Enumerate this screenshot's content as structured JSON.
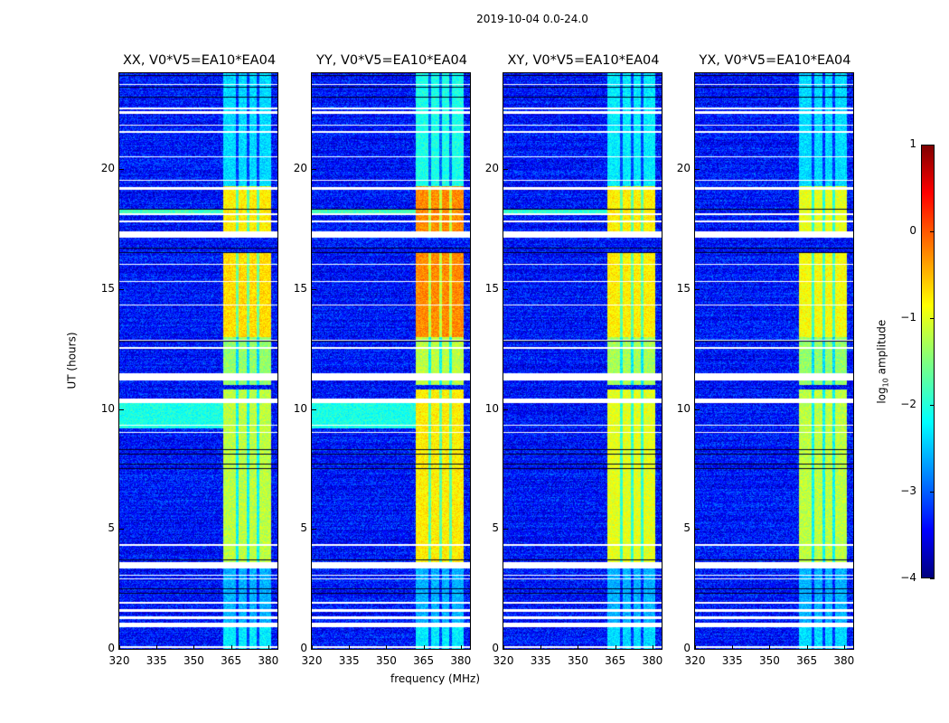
{
  "chart_data": {
    "type": "heatmap",
    "title": "2019-10-04 0.0-24.0",
    "xlabel": "frequency (MHz)",
    "ylabel": "UT (hours)",
    "xlim": [
      320,
      383.7
    ],
    "ylim": [
      0,
      24
    ],
    "xticks": [
      320,
      335,
      350,
      365,
      380
    ],
    "yticks": [
      0,
      5,
      10,
      15,
      20
    ],
    "colorbar": {
      "label": "log10 amplitude",
      "label_main": "log",
      "label_sub": "10",
      "label_rest": " amplitude",
      "range": [
        -4,
        1
      ],
      "ticks": [
        1,
        0,
        -1,
        -2,
        -3,
        -4
      ],
      "tick_labels": [
        "1",
        "0",
        "−1",
        "−2",
        "−3",
        "−4"
      ],
      "colormap": "jet"
    },
    "background_level": -3.3,
    "band_mhz": [
      362,
      381
    ],
    "band_gaps_mhz": [
      367.5,
      372,
      376
    ],
    "flagged_rows_ut": [
      [
        0.05,
        0.12
      ],
      [
        0.9,
        1.1
      ],
      [
        1.25,
        1.35
      ],
      [
        1.55,
        1.65
      ],
      [
        1.9,
        1.95
      ],
      [
        2.9,
        2.95
      ],
      [
        3.05,
        3.1
      ],
      [
        3.35,
        3.6
      ],
      [
        4.3,
        4.38
      ],
      [
        9.0,
        9.06
      ],
      [
        9.3,
        9.35
      ],
      [
        10.25,
        10.45
      ],
      [
        11.2,
        11.5
      ],
      [
        12.5,
        12.58
      ],
      [
        12.85,
        12.9
      ],
      [
        14.3,
        14.35
      ],
      [
        15.3,
        15.35
      ],
      [
        16.0,
        16.05
      ],
      [
        17.15,
        17.4
      ],
      [
        17.8,
        17.85
      ],
      [
        18.1,
        18.15
      ],
      [
        19.15,
        19.25
      ],
      [
        19.5,
        19.55
      ],
      [
        20.5,
        20.55
      ],
      [
        21.5,
        21.6
      ],
      [
        21.8,
        21.85
      ],
      [
        22.3,
        22.4
      ],
      [
        22.5,
        22.55
      ],
      [
        23.5,
        23.55
      ]
    ],
    "dark_rows_ut": [
      [
        2.3,
        2.33
      ],
      [
        2.5,
        2.53
      ],
      [
        3.7,
        3.73
      ],
      [
        5.3,
        5.32
      ],
      [
        7.5,
        7.53
      ],
      [
        7.7,
        7.72
      ],
      [
        7.9,
        7.93
      ],
      [
        8.1,
        8.12
      ],
      [
        8.3,
        8.32
      ],
      [
        12.8,
        12.83
      ],
      [
        16.5,
        16.53
      ],
      [
        16.7,
        16.72
      ],
      [
        18.3,
        18.35
      ],
      [
        23.0,
        23.03
      ],
      [
        23.4,
        23.43
      ],
      [
        23.9,
        23.93
      ]
    ],
    "panels": [
      {
        "title": "XX, V0*V5=EA10*EA04",
        "band_levels": [
          [
            0,
            1,
            -2.2
          ],
          [
            1,
            3.5,
            -2.5
          ],
          [
            3.5,
            10.8,
            -1.2
          ],
          [
            11,
            13,
            -1.4
          ],
          [
            13,
            16.5,
            -0.7
          ],
          [
            17.2,
            19.3,
            -0.8
          ],
          [
            19.3,
            24,
            -2.3
          ]
        ],
        "wideband": [
          [
            9.2,
            10.3,
            -2.0
          ],
          [
            18.1,
            18.3,
            -1.8
          ]
        ]
      },
      {
        "title": "YY, V0*V5=EA10*EA04",
        "band_levels": [
          [
            0,
            1,
            -2.2
          ],
          [
            1,
            3.5,
            -2.5
          ],
          [
            3.5,
            10.8,
            -0.8
          ],
          [
            11,
            13,
            -1.2
          ],
          [
            13,
            16.5,
            -0.3
          ],
          [
            17.2,
            19.3,
            -0.3
          ],
          [
            19.3,
            24,
            -2.0
          ]
        ],
        "wideband": [
          [
            9.2,
            10.3,
            -2.0
          ],
          [
            18.1,
            18.3,
            -1.8
          ]
        ]
      },
      {
        "title": "XY, V0*V5=EA10*EA04",
        "band_levels": [
          [
            0,
            1,
            -2.3
          ],
          [
            1,
            3.5,
            -2.5
          ],
          [
            3.5,
            10.8,
            -1.0
          ],
          [
            11,
            13,
            -1.3
          ],
          [
            13,
            16.5,
            -0.8
          ],
          [
            17.2,
            19.3,
            -0.8
          ],
          [
            19.3,
            24,
            -2.2
          ]
        ],
        "wideband": [
          [
            18.1,
            18.3,
            -1.9
          ]
        ]
      },
      {
        "title": "YX, V0*V5=EA10*EA04",
        "band_levels": [
          [
            0,
            1,
            -2.3
          ],
          [
            1,
            3.5,
            -2.5
          ],
          [
            3.5,
            10.8,
            -1.2
          ],
          [
            11,
            13,
            -1.4
          ],
          [
            13,
            16.5,
            -0.9
          ],
          [
            17.2,
            19.3,
            -1.0
          ],
          [
            19.3,
            24,
            -2.3
          ]
        ],
        "wideband": []
      }
    ]
  }
}
